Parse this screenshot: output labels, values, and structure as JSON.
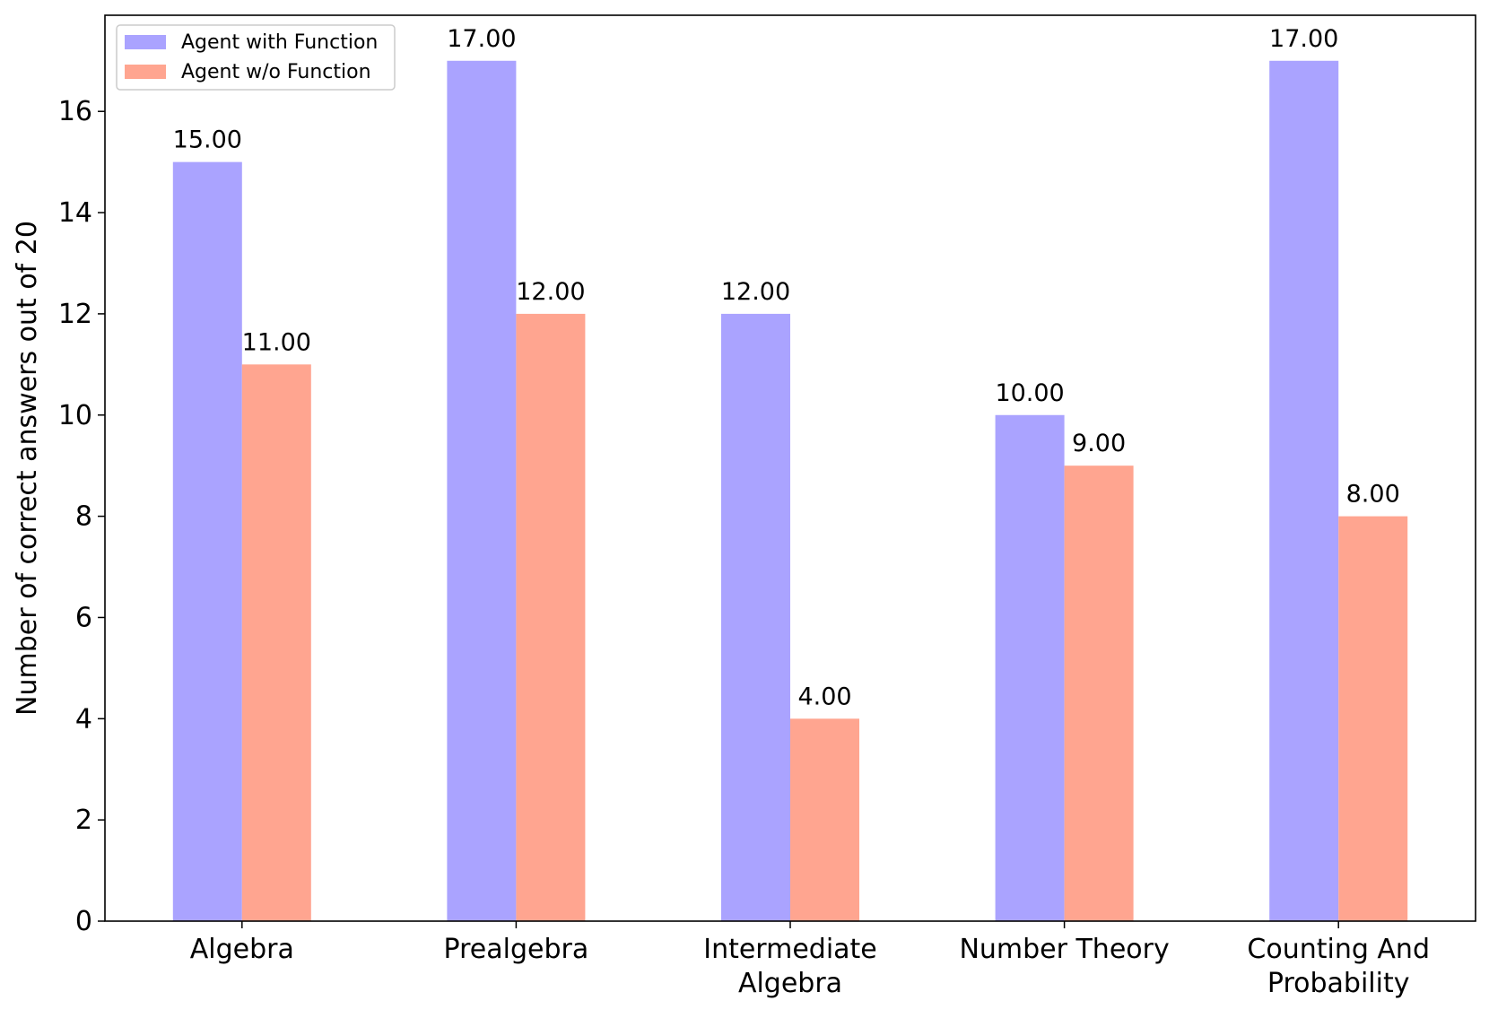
{
  "chart_data": {
    "type": "bar",
    "title": "",
    "xlabel": "",
    "ylabel": "Number of correct answers out of 20",
    "ylim": [
      0,
      17.9
    ],
    "yticks": [
      0,
      2,
      4,
      6,
      8,
      10,
      12,
      14,
      16
    ],
    "grid": false,
    "legend_position": "top-left",
    "categories": [
      [
        "Algebra"
      ],
      [
        "Prealgebra"
      ],
      [
        "Intermediate",
        "Algebra"
      ],
      [
        "Number Theory"
      ],
      [
        "Counting And",
        "Probability"
      ]
    ],
    "series": [
      {
        "name": "Agent with Function",
        "color": "#aaa3ff",
        "values": [
          15,
          17,
          12,
          10,
          17
        ],
        "labels": [
          "15.00",
          "17.00",
          "12.00",
          "10.00",
          "17.00"
        ]
      },
      {
        "name": "Agent w/o Function",
        "color": "#ffa590",
        "values": [
          11,
          12,
          4,
          9,
          8
        ],
        "labels": [
          "11.00",
          "12.00",
          "4.00",
          "9.00",
          "8.00"
        ]
      }
    ]
  }
}
